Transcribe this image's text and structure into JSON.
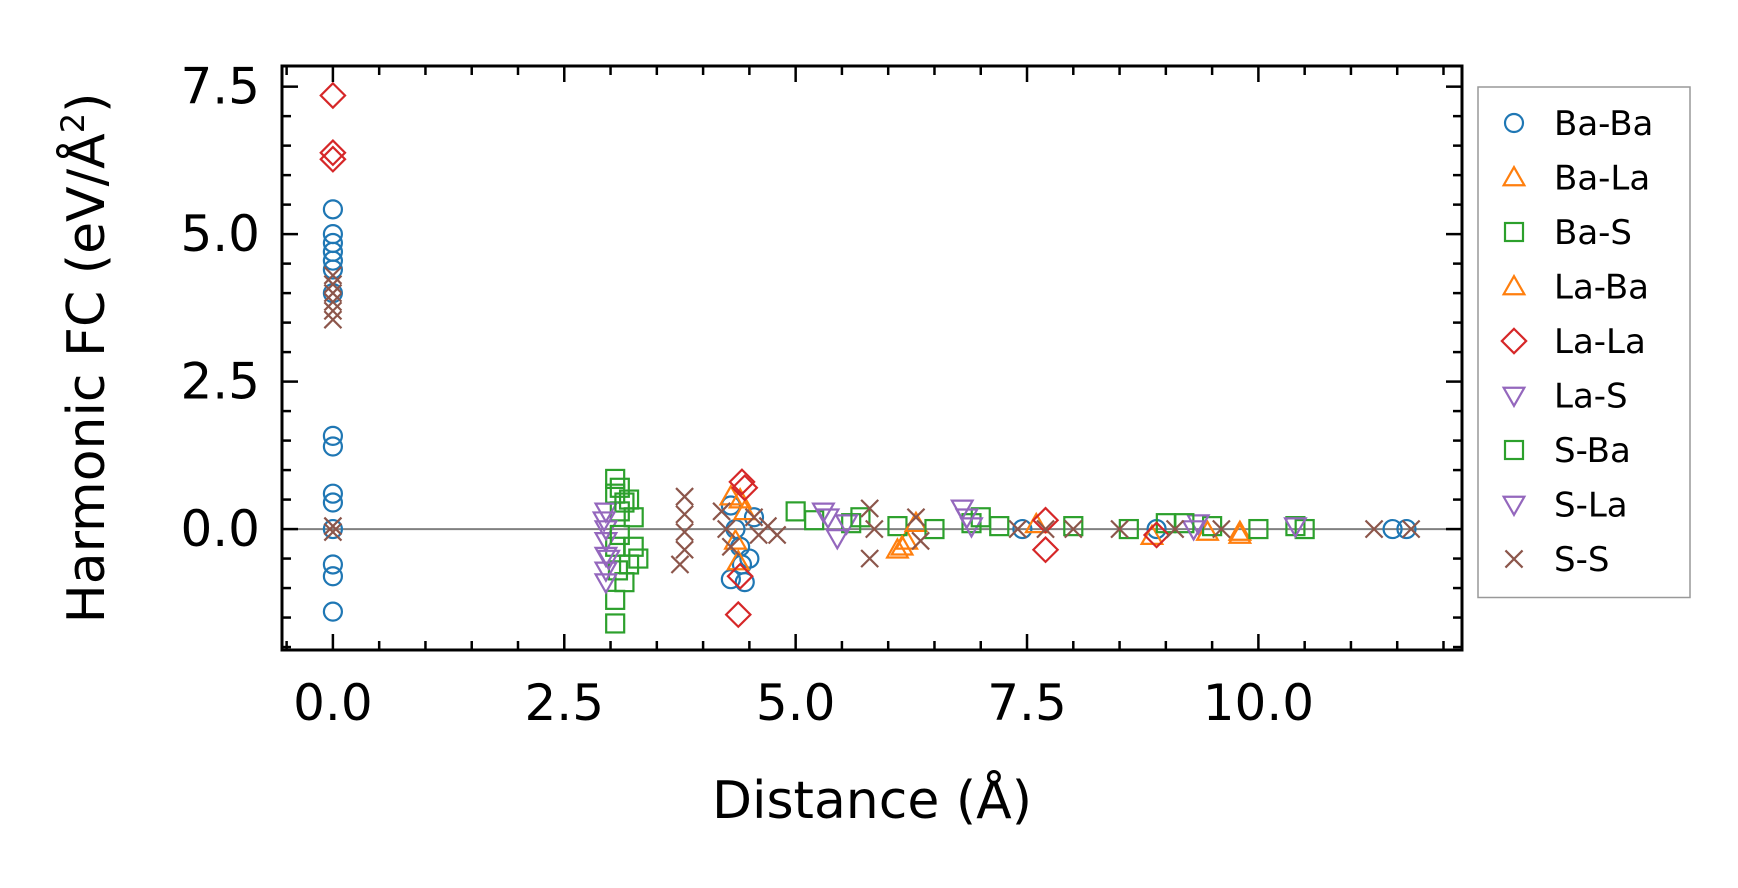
{
  "chart_data": {
    "type": "scatter",
    "xlabel": "Distance (Å)",
    "ylabel": "Harmonic FC (eV/Å²)",
    "ylabel_parts": [
      "Harmonic FC (eV/Å",
      "2",
      ")"
    ],
    "xlim": [
      -0.55,
      12.2
    ],
    "ylim": [
      -2.05,
      7.85
    ],
    "xticks": [
      0.0,
      2.5,
      5.0,
      7.5,
      10.0
    ],
    "xtick_labels": [
      "0.0",
      "2.5",
      "5.0",
      "7.5",
      "10.0"
    ],
    "yticks": [
      0.0,
      2.5,
      5.0,
      7.5
    ],
    "ytick_labels": [
      "0.0",
      "2.5",
      "5.0",
      "7.5"
    ],
    "zero_line": true,
    "legend_position": "outside-right",
    "series": [
      {
        "name": "Ba-Ba",
        "marker": "circle",
        "color": "#1f77b4",
        "points": [
          [
            0,
            5.42
          ],
          [
            0,
            5.0
          ],
          [
            0,
            4.85
          ],
          [
            0,
            4.7
          ],
          [
            0,
            4.55
          ],
          [
            0,
            4.4
          ],
          [
            0,
            4.0
          ],
          [
            0,
            1.58
          ],
          [
            0,
            1.4
          ],
          [
            0,
            0.6
          ],
          [
            0,
            0.45
          ],
          [
            0,
            0.0
          ],
          [
            0,
            -0.6
          ],
          [
            0,
            -0.8
          ],
          [
            0,
            -1.4
          ],
          [
            4.3,
            0.4
          ],
          [
            4.35,
            0.0
          ],
          [
            4.4,
            -0.3
          ],
          [
            4.42,
            -0.6
          ],
          [
            4.45,
            -0.9
          ],
          [
            4.5,
            -0.5
          ],
          [
            4.55,
            0.2
          ],
          [
            4.3,
            -0.85
          ],
          [
            11.45,
            0.0
          ],
          [
            11.6,
            0.0
          ],
          [
            7.45,
            0.0
          ],
          [
            8.9,
            0.0
          ]
        ]
      },
      {
        "name": "Ba-La",
        "marker": "triangle-up",
        "color": "#ff7f0e",
        "points": [
          [
            4.4,
            0.5
          ],
          [
            4.45,
            0.3
          ],
          [
            4.38,
            -0.55
          ],
          [
            6.1,
            -0.35
          ],
          [
            6.2,
            -0.2
          ],
          [
            7.6,
            0.08
          ],
          [
            8.85,
            -0.12
          ],
          [
            9.45,
            -0.05
          ],
          [
            9.8,
            -0.1
          ]
        ]
      },
      {
        "name": "Ba-S",
        "marker": "square",
        "color": "#2ca02c",
        "points": [
          [
            3.05,
            0.85
          ],
          [
            3.05,
            0.6
          ],
          [
            3.1,
            0.3
          ],
          [
            3.05,
            -0.3
          ],
          [
            3.08,
            -0.7
          ],
          [
            3.05,
            -1.2
          ],
          [
            3.05,
            -1.6
          ],
          [
            3.2,
            0.5
          ],
          [
            3.25,
            0.2
          ],
          [
            3.25,
            -0.3
          ],
          [
            3.3,
            -0.5
          ],
          [
            3.15,
            -0.9
          ],
          [
            5.0,
            0.3
          ],
          [
            5.2,
            0.15
          ],
          [
            5.6,
            0.1
          ],
          [
            6.1,
            0.05
          ],
          [
            6.9,
            0.1
          ],
          [
            7.2,
            0.05
          ],
          [
            8.0,
            0.05
          ],
          [
            9.0,
            0.1
          ],
          [
            9.5,
            0.05
          ],
          [
            10.4,
            0.05
          ],
          [
            10.5,
            0.0
          ]
        ]
      },
      {
        "name": "La-Ba",
        "marker": "triangle-up",
        "color": "#ff7f0e",
        "points": [
          [
            4.3,
            0.55
          ],
          [
            4.35,
            -0.2
          ],
          [
            6.15,
            -0.3
          ],
          [
            6.3,
            0.1
          ],
          [
            9.8,
            -0.05
          ]
        ]
      },
      {
        "name": "La-La",
        "marker": "diamond",
        "color": "#d62728",
        "points": [
          [
            0,
            7.35
          ],
          [
            0,
            6.38
          ],
          [
            0,
            6.27
          ],
          [
            4.42,
            0.8
          ],
          [
            4.45,
            0.7
          ],
          [
            4.4,
            -0.8
          ],
          [
            4.38,
            -1.45
          ],
          [
            7.7,
            0.15
          ],
          [
            7.7,
            -0.35
          ],
          [
            8.9,
            -0.1
          ]
        ]
      },
      {
        "name": "La-S",
        "marker": "triangle-down",
        "color": "#9467bd",
        "points": [
          [
            2.95,
            0.3
          ],
          [
            2.95,
            0.0
          ],
          [
            2.95,
            -0.2
          ],
          [
            2.95,
            -0.45
          ],
          [
            2.95,
            -0.7
          ],
          [
            2.95,
            -0.9
          ],
          [
            5.3,
            0.3
          ],
          [
            5.45,
            -0.15
          ],
          [
            5.55,
            0.1
          ],
          [
            6.8,
            0.35
          ],
          [
            6.9,
            0.05
          ],
          [
            9.35,
            0.1
          ],
          [
            10.4,
            0.05
          ]
        ]
      },
      {
        "name": "S-Ba",
        "marker": "square",
        "color": "#2ca02c",
        "points": [
          [
            3.1,
            0.7
          ],
          [
            3.15,
            0.45
          ],
          [
            3.1,
            -0.1
          ],
          [
            3.2,
            -0.6
          ],
          [
            5.7,
            0.2
          ],
          [
            6.5,
            0.0
          ],
          [
            7.0,
            0.2
          ],
          [
            8.6,
            0.0
          ],
          [
            9.2,
            0.1
          ],
          [
            10.0,
            0.0
          ]
        ]
      },
      {
        "name": "S-La",
        "marker": "triangle-down",
        "color": "#9467bd",
        "points": [
          [
            2.93,
            0.15
          ],
          [
            2.98,
            -0.5
          ],
          [
            5.35,
            0.2
          ],
          [
            6.85,
            0.2
          ],
          [
            9.3,
            0.0
          ]
        ]
      },
      {
        "name": "S-S",
        "marker": "x",
        "color": "#8c564b",
        "points": [
          [
            0,
            4.3
          ],
          [
            0,
            4.15
          ],
          [
            0,
            4.0
          ],
          [
            0,
            3.85
          ],
          [
            0,
            3.7
          ],
          [
            0,
            3.55
          ],
          [
            0,
            0.05
          ],
          [
            0,
            -0.05
          ],
          [
            3.8,
            0.55
          ],
          [
            3.8,
            0.25
          ],
          [
            3.8,
            -0.05
          ],
          [
            3.8,
            -0.35
          ],
          [
            3.75,
            -0.6
          ],
          [
            4.2,
            0.3
          ],
          [
            4.25,
            0.0
          ],
          [
            4.3,
            -0.3
          ],
          [
            4.55,
            0.2
          ],
          [
            4.6,
            -0.1
          ],
          [
            4.7,
            0.05
          ],
          [
            4.8,
            -0.1
          ],
          [
            5.8,
            0.35
          ],
          [
            5.85,
            0.0
          ],
          [
            5.8,
            -0.5
          ],
          [
            6.3,
            0.2
          ],
          [
            6.35,
            -0.2
          ],
          [
            7.4,
            0.0
          ],
          [
            7.7,
            0.0
          ],
          [
            8.0,
            0.0
          ],
          [
            8.5,
            0.0
          ],
          [
            9.1,
            0.0
          ],
          [
            9.6,
            0.0
          ],
          [
            11.25,
            0.0
          ],
          [
            11.65,
            0.0
          ]
        ]
      }
    ]
  }
}
